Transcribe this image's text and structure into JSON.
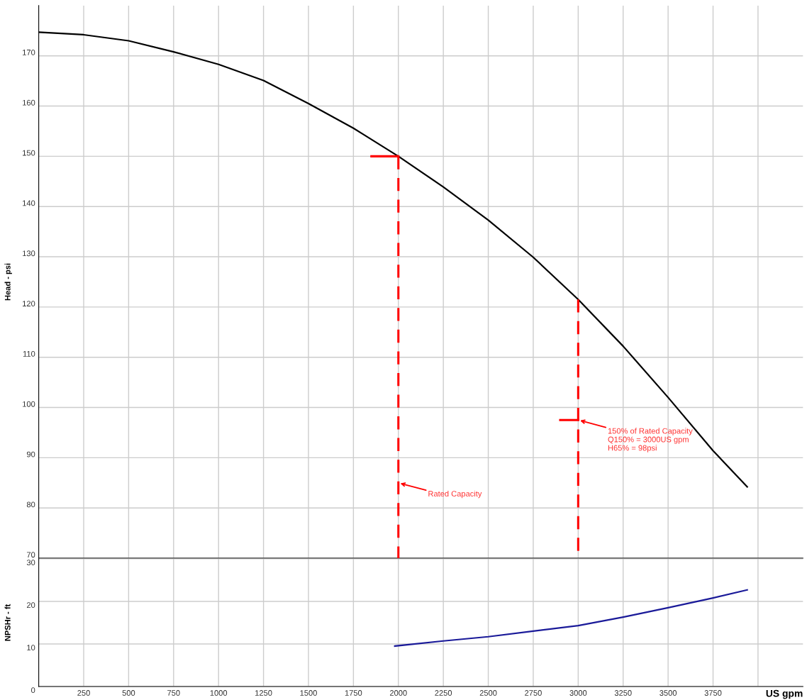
{
  "chart_data": [
    {
      "type": "line",
      "ylabel": "Head - psi",
      "xlim": [
        0,
        4250
      ],
      "xticks": [
        250,
        500,
        750,
        1000,
        1250,
        1500,
        1750,
        2000,
        2250,
        2500,
        2750,
        3000,
        3250,
        3500,
        3750,
        {
          "value": 4000,
          "label": null
        }
      ],
      "ylim": [
        70,
        180
      ],
      "yticks": [
        70,
        80,
        90,
        100,
        110,
        120,
        130,
        140,
        150,
        160,
        170
      ],
      "grid": true,
      "tick_labels": "y",
      "marker": "none",
      "series": [
        {
          "color": "#000000",
          "line_style": "solid",
          "x": [
            0,
            250,
            500,
            750,
            1000,
            1250,
            1500,
            1750,
            2000,
            2250,
            2500,
            2750,
            3000,
            3250,
            3500,
            3750,
            3940
          ],
          "values": [
            174.7,
            174.2,
            173.0,
            170.8,
            168.3,
            165.1,
            160.5,
            155.6,
            150.0,
            143.9,
            137.3,
            129.9,
            121.5,
            112.2,
            102.0,
            91.4,
            84.2
          ]
        },
        {
          "color": "#ff0000",
          "line_style": "solid",
          "x": [
            1850,
            2000
          ],
          "values": [
            150,
            150
          ]
        },
        {
          "color": "#ff0000",
          "line_style": "dashed",
          "x": [
            2000,
            2000
          ],
          "values": [
            150,
            70
          ]
        },
        {
          "color": "#ff0000",
          "line_style": "solid",
          "x": [
            2900,
            3000
          ],
          "values": [
            97.5,
            97.5
          ]
        },
        {
          "color": "#ff0000",
          "line_style": "dashed",
          "x": [
            3000,
            3000
          ],
          "values": [
            121.5,
            71
          ]
        }
      ],
      "annotations": [
        {
          "text": "Rated Capacity",
          "x": 2000,
          "y": 85
        },
        {
          "text": "150% of Rated Capacity\nQ150% = 3000US gpm\nH65% = 98psi",
          "x": 3000,
          "y": 97.5
        }
      ]
    },
    {
      "type": "line",
      "ylabel": "NPSHr - ft",
      "xlabel": "US gpm",
      "xlim": [
        0,
        4250
      ],
      "xticks": [
        250,
        500,
        750,
        1000,
        1250,
        1500,
        1750,
        2000,
        2250,
        2500,
        2750,
        3000,
        3250,
        3500,
        3750,
        {
          "value": 4000,
          "label": null
        }
      ],
      "ylim": [
        0,
        30
      ],
      "yticks": [
        0,
        10,
        20,
        30
      ],
      "grid": true,
      "marker": "none",
      "series": [
        {
          "color": "#1a1a99",
          "line_style": "solid",
          "x": [
            1980,
            2250,
            2500,
            2750,
            3000,
            3250,
            3500,
            3750,
            3940
          ],
          "values": [
            9.5,
            10.7,
            11.7,
            13.0,
            14.3,
            16.3,
            18.5,
            20.8,
            22.7
          ]
        }
      ]
    }
  ]
}
